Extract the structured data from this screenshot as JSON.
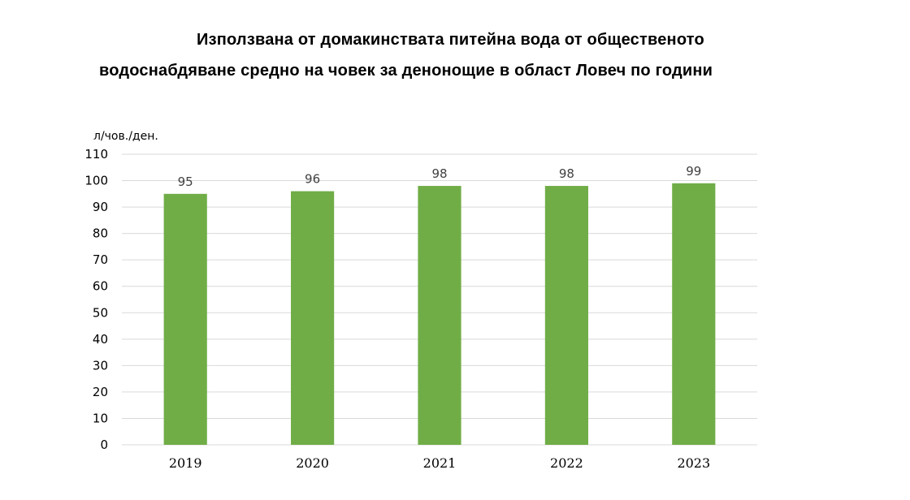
{
  "chart_data": {
    "type": "bar",
    "title_lines": [
      "Използвана от домакинствата питейна вода от общественото",
      "водоснабдяване средно на човек за денонощие в област Ловеч по години"
    ],
    "ylabel": "л/чов./ден.",
    "xlabel": "",
    "categories": [
      "2019",
      "2020",
      "2021",
      "2022",
      "2023"
    ],
    "values": [
      95,
      96,
      98,
      98,
      99
    ],
    "ylim": [
      0,
      110
    ],
    "yticks": [
      0,
      10,
      20,
      30,
      40,
      50,
      60,
      70,
      80,
      90,
      100,
      110
    ],
    "grid": true,
    "data_labels": true,
    "bar_color": "#70ad47",
    "grid_color": "#d9d9d9",
    "label_color": "#404040"
  }
}
